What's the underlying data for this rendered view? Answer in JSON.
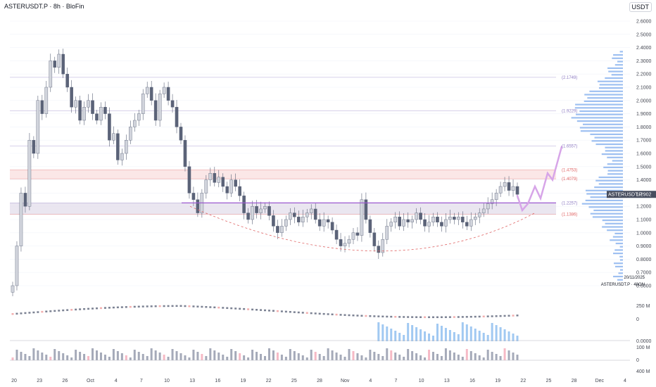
{
  "header": {
    "symbol_title": "ASTERUSDT.P · 8h · BloFin",
    "currency": "USDT"
  },
  "price_axis": {
    "labels": [
      "2.6000",
      "2.5000",
      "2.4000",
      "2.3000",
      "2.2000",
      "2.1000",
      "2.0000",
      "1.9000",
      "1.8000",
      "1.7000",
      "1.6000",
      "1.5000",
      "1.4000",
      "1.3000",
      "1.2000",
      "1.1000",
      "1.0000",
      "0.9000",
      "0.8000",
      "0.7000",
      "0.6000"
    ],
    "last_price": "1.2902",
    "last_symbol": "ASTERUSDT.P"
  },
  "indicator_axis": {
    "vol_labels": [
      "250 M",
      "0"
    ],
    "mid_labels": [
      "0.0000"
    ],
    "osc_labels": [
      "100 M",
      "0",
      "400 M"
    ]
  },
  "time_axis": {
    "labels": [
      "20",
      "23",
      "26",
      "Oct",
      "4",
      "7",
      "10",
      "13",
      "16",
      "19",
      "22",
      "25",
      "28",
      "Nov",
      "4",
      "7",
      "10",
      "13",
      "16",
      "19",
      "22",
      "25",
      "28",
      "Dec",
      "4"
    ]
  },
  "fib_levels": [
    {
      "label": "(2.1749)",
      "value": 2.1749,
      "color": "#8e7cc3"
    },
    {
      "label": "(1.9229)",
      "value": 1.9229,
      "color": "#8e7cc3"
    },
    {
      "label": "(1.6557)",
      "value": 1.6557,
      "color": "#8e7cc3"
    },
    {
      "label": "(1.4753)",
      "value": 1.4753,
      "color": "#e06666"
    },
    {
      "label": "(1.4079)",
      "value": 1.4079,
      "color": "#e06666"
    },
    {
      "label": "(1.2257)",
      "value": 1.2257,
      "color": "#8e7cc3"
    },
    {
      "label": "(1.1386)",
      "value": 1.1386,
      "color": "#e06666"
    }
  ],
  "info_box": {
    "date": "20/11/2025",
    "line": "ASTERUSDT.P · 48GN"
  },
  "colors": {
    "up": "#d1d4dc",
    "down": "#5b6378",
    "support_line": "#9b59d0",
    "projection": "#d7a5e8",
    "zone_red": "#f8d7d7",
    "zone_purple": "#e5e0ec",
    "profile": "#4f8de6"
  },
  "chart_data": {
    "type": "candlestick",
    "symbol": "ASTERUSDT.P",
    "interval": "8h",
    "exchange": "BloFin",
    "ylim": [
      0.6,
      2.6
    ],
    "close_series": [
      0.6,
      0.9,
      1.3,
      1.2,
      1.7,
      1.6,
      2.0,
      1.9,
      2.1,
      2.3,
      2.25,
      2.35,
      2.2,
      2.1,
      1.95,
      2.0,
      1.85,
      1.95,
      2.0,
      1.9,
      1.85,
      1.95,
      1.9,
      1.7,
      1.75,
      1.55,
      1.6,
      1.7,
      1.8,
      1.85,
      1.9,
      2.05,
      2.1,
      2.0,
      1.85,
      2.05,
      2.1,
      2.0,
      1.95,
      1.8,
      1.7,
      1.5,
      1.3,
      1.25,
      1.15,
      1.3,
      1.4,
      1.45,
      1.38,
      1.42,
      1.35,
      1.3,
      1.4,
      1.35,
      1.28,
      1.15,
      1.1,
      1.2,
      1.15,
      1.18,
      1.2,
      1.13,
      1.05,
      1.0,
      1.05,
      1.1,
      1.15,
      1.12,
      1.08,
      1.12,
      1.15,
      1.18,
      1.1,
      1.05,
      1.1,
      1.08,
      1.02,
      0.95,
      0.9,
      0.92,
      0.95,
      1.0,
      0.98,
      1.25,
      1.1,
      1.0,
      0.9,
      0.85,
      0.95,
      1.05,
      1.08,
      1.12,
      1.05,
      1.1,
      1.08,
      1.1,
      1.15,
      1.1,
      1.05,
      1.08,
      1.12,
      1.08,
      1.05,
      1.1,
      1.12,
      1.1,
      1.12,
      1.08,
      1.05,
      1.1,
      1.12,
      1.15,
      1.18,
      1.22,
      1.25,
      1.3,
      1.35,
      1.38,
      1.32,
      1.35,
      1.29
    ],
    "support_level": 1.2257,
    "last_date": "20/11/2025",
    "last_price": 1.2902
  }
}
